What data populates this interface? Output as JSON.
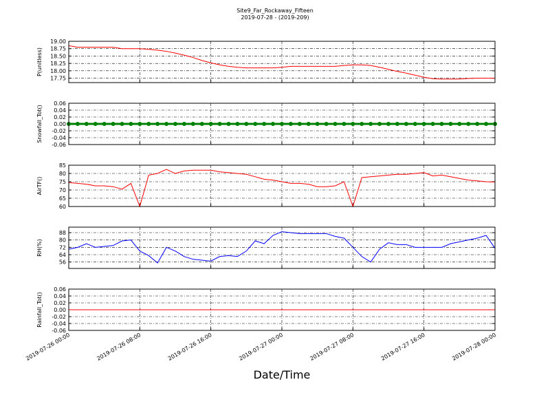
{
  "chart_data": [
    {
      "type": "line",
      "title": "Site9_Far_Rockaway_Fifteen",
      "subtitle": "2019-07-28 - (2019-209)",
      "y_label": "P(unitless)",
      "color": "#ff0000",
      "grid": true,
      "x": [
        "2019-07-26 00:00",
        "2019-07-26 01:00",
        "2019-07-26 02:00",
        "2019-07-26 03:00",
        "2019-07-26 04:00",
        "2019-07-26 05:00",
        "2019-07-26 06:00",
        "2019-07-26 07:00",
        "2019-07-26 08:00",
        "2019-07-26 09:00",
        "2019-07-26 10:00",
        "2019-07-26 11:00",
        "2019-07-26 12:00",
        "2019-07-26 13:00",
        "2019-07-26 14:00",
        "2019-07-26 15:00",
        "2019-07-26 16:00",
        "2019-07-26 17:00",
        "2019-07-26 18:00",
        "2019-07-26 19:00",
        "2019-07-26 20:00",
        "2019-07-26 21:00",
        "2019-07-26 22:00",
        "2019-07-26 23:00",
        "2019-07-27 00:00",
        "2019-07-27 01:00",
        "2019-07-27 02:00",
        "2019-07-27 03:00",
        "2019-07-27 04:00",
        "2019-07-27 05:00",
        "2019-07-27 06:00",
        "2019-07-27 07:00",
        "2019-07-27 08:00",
        "2019-07-27 09:00",
        "2019-07-27 10:00",
        "2019-07-27 11:00",
        "2019-07-27 12:00",
        "2019-07-27 13:00",
        "2019-07-27 14:00",
        "2019-07-27 15:00",
        "2019-07-27 16:00",
        "2019-07-27 17:00",
        "2019-07-27 18:00",
        "2019-07-27 19:00",
        "2019-07-27 20:00",
        "2019-07-27 21:00",
        "2019-07-27 22:00",
        "2019-07-27 23:00",
        "2019-07-28 00:00"
      ],
      "values": [
        18.85,
        18.8,
        18.8,
        18.8,
        18.8,
        18.8,
        18.75,
        18.75,
        18.75,
        18.73,
        18.7,
        18.66,
        18.6,
        18.53,
        18.45,
        18.35,
        18.27,
        18.2,
        18.15,
        18.12,
        18.1,
        18.1,
        18.1,
        18.1,
        18.12,
        18.15,
        18.15,
        18.15,
        18.15,
        18.15,
        18.15,
        18.18,
        18.2,
        18.2,
        18.18,
        18.12,
        18.05,
        17.98,
        17.92,
        17.85,
        17.78,
        17.73,
        17.72,
        17.72,
        17.72,
        17.74,
        17.75,
        17.75,
        17.75
      ],
      "xlim": [
        "2019-07-26 00:00",
        "2019-07-28 00:00"
      ],
      "xticks": [
        "2019-07-26 00:00",
        "2019-07-26 08:00",
        "2019-07-26 16:00",
        "2019-07-27 00:00",
        "2019-07-27 08:00",
        "2019-07-27 16:00",
        "2019-07-28 00:00"
      ],
      "ylim": [
        17.6,
        19.0
      ],
      "yticks": [
        17.75,
        {
          "value": 18,
          "label": "18.00"
        },
        18.25,
        {
          "value": 18.5,
          "label": "18.50"
        },
        18.75,
        {
          "value": 19,
          "label": "19.00"
        }
      ]
    },
    {
      "type": "line",
      "y_label": "Snowfall_Tot()",
      "color": "#008000",
      "markers": true,
      "grid": true,
      "x": [
        "2019-07-26 00:00",
        "2019-07-26 01:00",
        "2019-07-26 02:00",
        "2019-07-26 03:00",
        "2019-07-26 04:00",
        "2019-07-26 05:00",
        "2019-07-26 06:00",
        "2019-07-26 07:00",
        "2019-07-26 08:00",
        "2019-07-26 09:00",
        "2019-07-26 10:00",
        "2019-07-26 11:00",
        "2019-07-26 12:00",
        "2019-07-26 13:00",
        "2019-07-26 14:00",
        "2019-07-26 15:00",
        "2019-07-26 16:00",
        "2019-07-26 17:00",
        "2019-07-26 18:00",
        "2019-07-26 19:00",
        "2019-07-26 20:00",
        "2019-07-26 21:00",
        "2019-07-26 22:00",
        "2019-07-26 23:00",
        "2019-07-27 00:00",
        "2019-07-27 01:00",
        "2019-07-27 02:00",
        "2019-07-27 03:00",
        "2019-07-27 04:00",
        "2019-07-27 05:00",
        "2019-07-27 06:00",
        "2019-07-27 07:00",
        "2019-07-27 08:00",
        "2019-07-27 09:00",
        "2019-07-27 10:00",
        "2019-07-27 11:00",
        "2019-07-27 12:00",
        "2019-07-27 13:00",
        "2019-07-27 14:00",
        "2019-07-27 15:00",
        "2019-07-27 16:00",
        "2019-07-27 17:00",
        "2019-07-27 18:00",
        "2019-07-27 19:00",
        "2019-07-27 20:00",
        "2019-07-27 21:00",
        "2019-07-27 22:00",
        "2019-07-27 23:00",
        "2019-07-28 00:00"
      ],
      "values": [
        0,
        0,
        0,
        0,
        0,
        0,
        0,
        0,
        0,
        0,
        0,
        0,
        0,
        0,
        0,
        0,
        0,
        0,
        0,
        0,
        0,
        0,
        0,
        0,
        0,
        0,
        0,
        0,
        0,
        0,
        0,
        0,
        0,
        0,
        0,
        0,
        0,
        0,
        0,
        0,
        0,
        0,
        0,
        0,
        0,
        0,
        0,
        0,
        0
      ],
      "xlim": [
        "2019-07-26 00:00",
        "2019-07-28 00:00"
      ],
      "xticks": [
        "2019-07-26 00:00",
        "2019-07-26 08:00",
        "2019-07-26 16:00",
        "2019-07-27 00:00",
        "2019-07-27 08:00",
        "2019-07-27 16:00",
        "2019-07-28 00:00"
      ],
      "ylim": [
        -0.06,
        0.06
      ],
      "yticks": [
        -0.06,
        -0.04,
        -0.02,
        {
          "value": 0,
          "label": "0.00"
        },
        0.02,
        0.04,
        0.06
      ]
    },
    {
      "type": "line",
      "y_label": "AirTF()",
      "color": "#ff0000",
      "grid": true,
      "x": [
        "2019-07-26 00:00",
        "2019-07-26 01:00",
        "2019-07-26 02:00",
        "2019-07-26 03:00",
        "2019-07-26 04:00",
        "2019-07-26 05:00",
        "2019-07-26 06:00",
        "2019-07-26 07:00",
        "2019-07-26 08:00",
        "2019-07-26 09:00",
        "2019-07-26 10:00",
        "2019-07-26 11:00",
        "2019-07-26 12:00",
        "2019-07-26 13:00",
        "2019-07-26 14:00",
        "2019-07-26 15:00",
        "2019-07-26 16:00",
        "2019-07-26 17:00",
        "2019-07-26 18:00",
        "2019-07-26 19:00",
        "2019-07-26 20:00",
        "2019-07-26 21:00",
        "2019-07-26 22:00",
        "2019-07-26 23:00",
        "2019-07-27 00:00",
        "2019-07-27 01:00",
        "2019-07-27 02:00",
        "2019-07-27 03:00",
        "2019-07-27 04:00",
        "2019-07-27 05:00",
        "2019-07-27 06:00",
        "2019-07-27 07:00",
        "2019-07-27 08:00",
        "2019-07-27 09:00",
        "2019-07-27 10:00",
        "2019-07-27 11:00",
        "2019-07-27 12:00",
        "2019-07-27 13:00",
        "2019-07-27 14:00",
        "2019-07-27 15:00",
        "2019-07-27 16:00",
        "2019-07-27 17:00",
        "2019-07-27 18:00",
        "2019-07-27 19:00",
        "2019-07-27 20:00",
        "2019-07-27 21:00",
        "2019-07-27 22:00",
        "2019-07-27 23:00",
        "2019-07-28 00:00"
      ],
      "values": [
        74.5,
        74,
        73.5,
        72.5,
        72.5,
        72,
        70.5,
        74,
        60,
        79,
        80,
        82.5,
        80,
        81.5,
        82,
        82,
        82,
        81,
        80.5,
        80,
        79.5,
        78,
        76.5,
        76,
        75,
        74,
        74,
        73.5,
        72,
        72,
        72.5,
        75,
        60,
        77.5,
        78,
        78.5,
        79,
        79.5,
        79.5,
        80,
        80.5,
        78.5,
        79,
        78,
        77,
        76,
        75.5,
        75,
        74.8
      ],
      "xlim": [
        "2019-07-26 00:00",
        "2019-07-28 00:00"
      ],
      "xticks": [
        "2019-07-26 00:00",
        "2019-07-26 08:00",
        "2019-07-26 16:00",
        "2019-07-27 00:00",
        "2019-07-27 08:00",
        "2019-07-27 16:00",
        "2019-07-28 00:00"
      ],
      "ylim": [
        60,
        85
      ],
      "yticks": [
        60,
        65,
        70,
        75,
        80,
        85
      ]
    },
    {
      "type": "line",
      "y_label": "RH(%)",
      "color": "#0000ff",
      "grid": true,
      "x": [
        "2019-07-26 00:00",
        "2019-07-26 01:00",
        "2019-07-26 02:00",
        "2019-07-26 03:00",
        "2019-07-26 04:00",
        "2019-07-26 05:00",
        "2019-07-26 06:00",
        "2019-07-26 07:00",
        "2019-07-26 08:00",
        "2019-07-26 09:00",
        "2019-07-26 10:00",
        "2019-07-26 11:00",
        "2019-07-26 12:00",
        "2019-07-26 13:00",
        "2019-07-26 14:00",
        "2019-07-26 15:00",
        "2019-07-26 16:00",
        "2019-07-26 17:00",
        "2019-07-26 18:00",
        "2019-07-26 19:00",
        "2019-07-26 20:00",
        "2019-07-26 21:00",
        "2019-07-26 22:00",
        "2019-07-26 23:00",
        "2019-07-27 00:00",
        "2019-07-27 01:00",
        "2019-07-27 02:00",
        "2019-07-27 03:00",
        "2019-07-27 04:00",
        "2019-07-27 05:00",
        "2019-07-27 06:00",
        "2019-07-27 07:00",
        "2019-07-27 08:00",
        "2019-07-27 09:00",
        "2019-07-27 10:00",
        "2019-07-27 11:00",
        "2019-07-27 12:00",
        "2019-07-27 13:00",
        "2019-07-27 14:00",
        "2019-07-27 15:00",
        "2019-07-27 16:00",
        "2019-07-27 17:00",
        "2019-07-27 18:00",
        "2019-07-27 19:00",
        "2019-07-27 20:00",
        "2019-07-27 21:00",
        "2019-07-27 22:00",
        "2019-07-27 23:00",
        "2019-07-28 00:00"
      ],
      "values": [
        70,
        72,
        76,
        72,
        73,
        74,
        79,
        80,
        68,
        63,
        55,
        72,
        68,
        62,
        59,
        58,
        57,
        62,
        63,
        62,
        68,
        79,
        76,
        85,
        89,
        88,
        87,
        87,
        87,
        87,
        84,
        82,
        72,
        62,
        56,
        70,
        77,
        75,
        75,
        72,
        72,
        72,
        72,
        76,
        78,
        80,
        82,
        85,
        71
      ],
      "xlim": [
        "2019-07-26 00:00",
        "2019-07-28 00:00"
      ],
      "xticks": [
        "2019-07-26 00:00",
        "2019-07-26 08:00",
        "2019-07-26 16:00",
        "2019-07-27 00:00",
        "2019-07-27 08:00",
        "2019-07-27 16:00",
        "2019-07-28 00:00"
      ],
      "ylim": [
        49,
        94
      ],
      "yticks": [
        56,
        64,
        72,
        80,
        88
      ]
    },
    {
      "type": "line",
      "y_label": "Rainfall_Tot()",
      "x_label": "Date/Time",
      "color": "#ff0000",
      "grid": true,
      "x": [
        "2019-07-26 00:00",
        "2019-07-26 01:00",
        "2019-07-26 02:00",
        "2019-07-26 03:00",
        "2019-07-26 04:00",
        "2019-07-26 05:00",
        "2019-07-26 06:00",
        "2019-07-26 07:00",
        "2019-07-26 08:00",
        "2019-07-26 09:00",
        "2019-07-26 10:00",
        "2019-07-26 11:00",
        "2019-07-26 12:00",
        "2019-07-26 13:00",
        "2019-07-26 14:00",
        "2019-07-26 15:00",
        "2019-07-26 16:00",
        "2019-07-26 17:00",
        "2019-07-26 18:00",
        "2019-07-26 19:00",
        "2019-07-26 20:00",
        "2019-07-26 21:00",
        "2019-07-26 22:00",
        "2019-07-26 23:00",
        "2019-07-27 00:00",
        "2019-07-27 01:00",
        "2019-07-27 02:00",
        "2019-07-27 03:00",
        "2019-07-27 04:00",
        "2019-07-27 05:00",
        "2019-07-27 06:00",
        "2019-07-27 07:00",
        "2019-07-27 08:00",
        "2019-07-27 09:00",
        "2019-07-27 10:00",
        "2019-07-27 11:00",
        "2019-07-27 12:00",
        "2019-07-27 13:00",
        "2019-07-27 14:00",
        "2019-07-27 15:00",
        "2019-07-27 16:00",
        "2019-07-27 17:00",
        "2019-07-27 18:00",
        "2019-07-27 19:00",
        "2019-07-27 20:00",
        "2019-07-27 21:00",
        "2019-07-27 22:00",
        "2019-07-27 23:00",
        "2019-07-28 00:00"
      ],
      "values": [
        0,
        0,
        0,
        0,
        0,
        0,
        0,
        0,
        0,
        0,
        0,
        0,
        0,
        0,
        0,
        0,
        0,
        0,
        0,
        0,
        0,
        0,
        0,
        0,
        0,
        0,
        0,
        0,
        0,
        0,
        0,
        0,
        0,
        0,
        0,
        0,
        0,
        0,
        0,
        0,
        0,
        0,
        0,
        0,
        0,
        0,
        0,
        0,
        0
      ],
      "xlim": [
        "2019-07-26 00:00",
        "2019-07-28 00:00"
      ],
      "xticks": [
        "2019-07-26 00:00",
        "2019-07-26 08:00",
        "2019-07-26 16:00",
        "2019-07-27 00:00",
        "2019-07-27 08:00",
        "2019-07-27 16:00",
        "2019-07-28 00:00"
      ],
      "ylim": [
        -0.06,
        0.06
      ],
      "yticks": [
        -0.06,
        -0.04,
        -0.02,
        {
          "value": 0,
          "label": "0.00"
        },
        0.02,
        0.04,
        0.06
      ]
    }
  ]
}
